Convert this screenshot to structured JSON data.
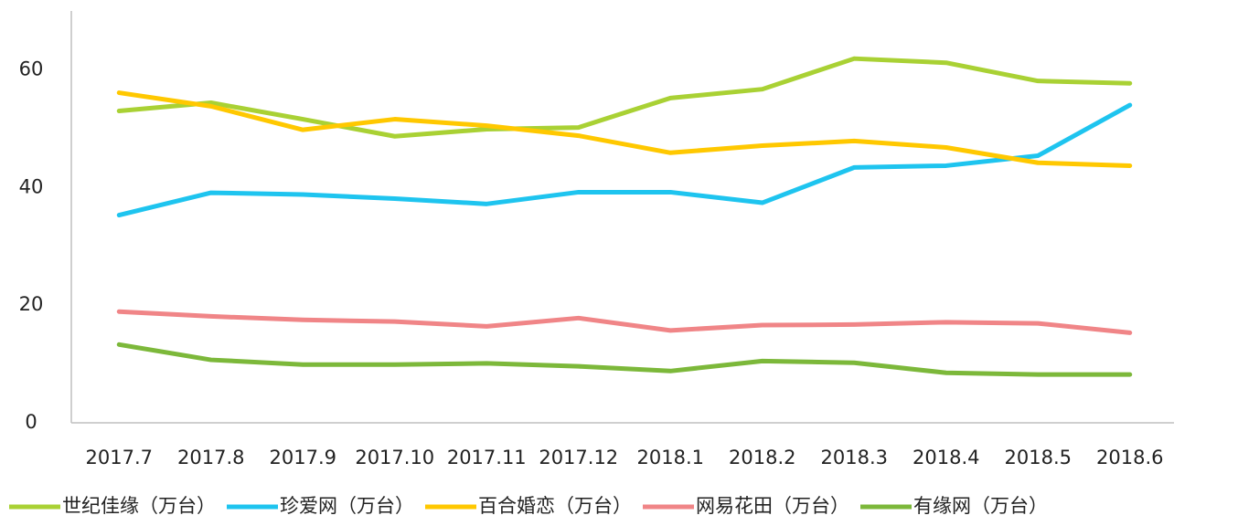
{
  "chart_data": {
    "type": "line",
    "categories": [
      "2017.7",
      "2017.8",
      "2017.9",
      "2017.10",
      "2017.11",
      "2017.12",
      "2018.1",
      "2018.2",
      "2018.3",
      "2018.4",
      "2018.5",
      "2018.6"
    ],
    "series": [
      {
        "name": "世纪佳缘（万台）",
        "color": "#a9d134",
        "values": [
          53.0,
          54.4,
          51.6,
          48.7,
          49.9,
          50.2,
          55.2,
          56.7,
          61.9,
          61.2,
          58.1,
          57.7
        ]
      },
      {
        "name": "珍爱网（万台）",
        "color": "#1ec4ef",
        "values": [
          35.3,
          39.1,
          38.8,
          38.1,
          37.2,
          39.2,
          39.2,
          37.4,
          43.4,
          43.7,
          45.4,
          54.0
        ]
      },
      {
        "name": "百合婚恋（万台）",
        "color": "#ffc800",
        "values": [
          56.1,
          53.8,
          49.8,
          51.6,
          50.5,
          48.8,
          45.9,
          47.1,
          47.9,
          46.8,
          44.2,
          43.7
        ]
      },
      {
        "name": "网易花田（万台）",
        "color": "#f08587",
        "values": [
          18.9,
          18.1,
          17.5,
          17.2,
          16.4,
          17.8,
          15.7,
          16.6,
          16.7,
          17.1,
          16.9,
          15.3
        ]
      },
      {
        "name": "有缘网（万台）",
        "color": "#7cb83a",
        "values": [
          13.3,
          10.7,
          9.9,
          9.9,
          10.1,
          9.6,
          8.8,
          10.5,
          10.2,
          8.5,
          8.2,
          8.2
        ]
      }
    ],
    "ylim": [
      0,
      70
    ],
    "yticks": [
      0,
      20,
      40,
      60
    ],
    "grid": false,
    "legend": "bottom"
  }
}
